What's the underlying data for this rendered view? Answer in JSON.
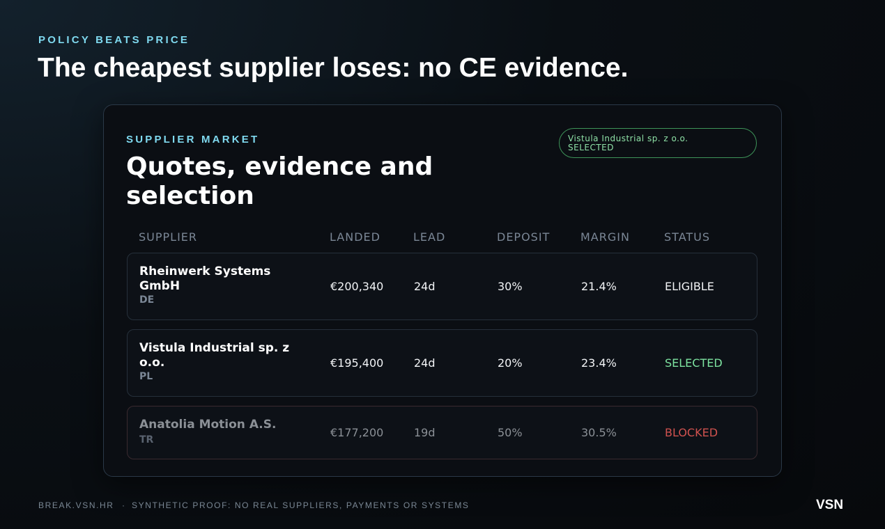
{
  "header": {
    "eyebrow": "POLICY BEATS PRICE",
    "title": "The cheapest supplier loses: no CE evidence."
  },
  "card": {
    "eyebrow": "SUPPLIER MARKET",
    "title": "Quotes, evidence and selection",
    "badge": {
      "name": "Vistula Industrial sp. z o.o.",
      "status": "SELECTED"
    },
    "table": {
      "headers": [
        "SUPPLIER",
        "LANDED",
        "LEAD",
        "DEPOSIT",
        "MARGIN",
        "STATUS"
      ],
      "rows": [
        {
          "name": "Rheinwerk Systems GmbH",
          "country": "DE",
          "landed": "€200,340",
          "lead": "24d",
          "deposit": "30%",
          "margin": "21.4%",
          "status": "ELIGIBLE"
        },
        {
          "name": "Vistula Industrial sp. z o.o.",
          "country": "PL",
          "landed": "€195,400",
          "lead": "24d",
          "deposit": "20%",
          "margin": "23.4%",
          "status": "SELECTED"
        },
        {
          "name": "Anatolia Motion A.S.",
          "country": "TR",
          "landed": "€177,200",
          "lead": "19d",
          "deposit": "50%",
          "margin": "30.5%",
          "status": "BLOCKED"
        }
      ]
    }
  },
  "footer": {
    "site": "BREAK.VSN.HR",
    "separator": "·",
    "note": "SYNTHETIC PROOF: NO REAL SUPPLIERS, PAYMENTS OR SYSTEMS",
    "brand": "VSN"
  }
}
